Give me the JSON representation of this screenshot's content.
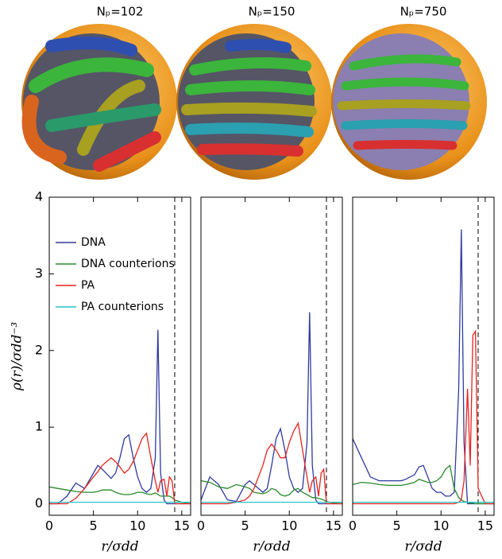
{
  "chart_data": [
    {
      "type": "line",
      "title": "Nₚ=102",
      "xlabel": "r/σdd",
      "ylabel": "ρ(r)/σdd⁻³",
      "x": [
        0,
        1,
        2,
        3,
        4,
        5,
        5.5,
        6,
        7,
        7.5,
        8,
        8.5,
        9,
        9.5,
        10,
        10.5,
        11,
        11.5,
        12,
        12.3,
        12.6,
        13,
        13.3,
        13.6,
        13.9,
        14.2,
        15,
        16
      ],
      "xlim": [
        0,
        16
      ],
      "xticks": [
        0,
        5,
        10,
        15
      ],
      "ylim": [
        -0.15,
        4
      ],
      "yticks": [
        0,
        1,
        2,
        3,
        4
      ],
      "vline": 14.2,
      "legend": "upper left",
      "series": [
        {
          "name": "DNA",
          "color": "#2e3a9e",
          "values": [
            0,
            0,
            0.1,
            0.27,
            0.2,
            0.4,
            0.5,
            0.45,
            0.33,
            0.4,
            0.6,
            0.85,
            0.9,
            0.6,
            0.35,
            0.2,
            0.15,
            0.2,
            0.6,
            2.27,
            0.4,
            0.05,
            0,
            0,
            0,
            0,
            0,
            0
          ]
        },
        {
          "name": "DNA counterions",
          "color": "#2a8a2a",
          "values": [
            0.22,
            0.2,
            0.18,
            0.16,
            0.15,
            0.15,
            0.16,
            0.18,
            0.18,
            0.15,
            0.13,
            0.12,
            0.12,
            0.13,
            0.15,
            0.15,
            0.13,
            0.12,
            0.14,
            0.12,
            0.1,
            0.1,
            0.1,
            0.1,
            0.08,
            0.05,
            0.02,
            0
          ]
        },
        {
          "name": "PA",
          "color": "#e8231e",
          "values": [
            0,
            0,
            0,
            0.07,
            0.2,
            0.35,
            0.42,
            0.5,
            0.6,
            0.55,
            0.48,
            0.4,
            0.45,
            0.55,
            0.7,
            0.85,
            0.92,
            0.6,
            0.3,
            0.15,
            0.3,
            0.32,
            0.1,
            0.35,
            0.3,
            0,
            0,
            0
          ]
        },
        {
          "name": "PA counterions",
          "color": "#2bc4c4",
          "values": [
            0.02,
            0.02,
            0.02,
            0.02,
            0.02,
            0.02,
            0.02,
            0.02,
            0.02,
            0.02,
            0.02,
            0.02,
            0.02,
            0.02,
            0.02,
            0.02,
            0.02,
            0.02,
            0.02,
            0.02,
            0.02,
            0.02,
            0.02,
            0.02,
            0.02,
            0.02,
            0.02,
            0.02
          ]
        }
      ]
    },
    {
      "type": "line",
      "title": "Nₚ=150",
      "xlabel": "r/σdd",
      "x": [
        0,
        1,
        2,
        3,
        4,
        5,
        5.5,
        6,
        7,
        7.5,
        8,
        8.5,
        9,
        9.5,
        10,
        10.5,
        11,
        11.5,
        12,
        12.3,
        12.6,
        13,
        13.3,
        13.6,
        13.9,
        14.2,
        15,
        16
      ],
      "xlim": [
        0,
        16
      ],
      "xticks": [
        0,
        5,
        10,
        15
      ],
      "ylim": [
        -0.15,
        4
      ],
      "vline": 14.2,
      "series": [
        {
          "name": "DNA",
          "color": "#2e3a9e",
          "values": [
            0.05,
            0.35,
            0.25,
            0.05,
            0.03,
            0.25,
            0.3,
            0.25,
            0.15,
            0.2,
            0.5,
            0.85,
            0.98,
            0.7,
            0.35,
            0.2,
            0.15,
            0.2,
            0.8,
            2.5,
            0.5,
            0.05,
            0,
            0,
            0,
            0,
            0,
            0
          ]
        },
        {
          "name": "DNA counterions",
          "color": "#2a8a2a",
          "values": [
            0.3,
            0.28,
            0.22,
            0.2,
            0.25,
            0.22,
            0.2,
            0.15,
            0.13,
            0.15,
            0.2,
            0.18,
            0.12,
            0.1,
            0.12,
            0.18,
            0.2,
            0.15,
            0.12,
            0.1,
            0.08,
            0.08,
            0.07,
            0.06,
            0.05,
            0.03,
            0.01,
            0
          ]
        },
        {
          "name": "PA",
          "color": "#e8231e",
          "values": [
            0,
            0,
            0,
            0,
            0.02,
            0.05,
            0.1,
            0.2,
            0.5,
            0.7,
            0.78,
            0.7,
            0.6,
            0.6,
            0.8,
            0.95,
            1.05,
            0.7,
            0.35,
            0.15,
            0.3,
            0.35,
            0.1,
            0.4,
            0.45,
            0,
            0,
            0
          ]
        },
        {
          "name": "PA counterions",
          "color": "#2bc4c4",
          "values": [
            0.02,
            0.02,
            0.02,
            0.02,
            0.02,
            0.02,
            0.02,
            0.02,
            0.02,
            0.02,
            0.02,
            0.02,
            0.02,
            0.02,
            0.02,
            0.02,
            0.02,
            0.02,
            0.02,
            0.02,
            0.02,
            0.02,
            0.02,
            0.02,
            0.02,
            0.02,
            0.02,
            0.02
          ]
        }
      ]
    },
    {
      "type": "line",
      "title": "Nₚ=750",
      "xlabel": "r/σdd",
      "x": [
        0,
        1,
        2,
        3,
        4,
        5,
        5.5,
        6,
        7,
        7.5,
        8,
        8.5,
        9,
        9.5,
        10,
        10.5,
        11,
        11.5,
        12,
        12.3,
        12.6,
        13,
        13.3,
        13.6,
        13.9,
        14.2,
        15,
        16
      ],
      "xlim": [
        0,
        16
      ],
      "xticks": [
        0,
        5,
        10,
        15
      ],
      "ylim": [
        -0.15,
        4
      ],
      "vline": 14.2,
      "series": [
        {
          "name": "DNA",
          "color": "#2e3a9e",
          "values": [
            0.85,
            0.6,
            0.35,
            0.3,
            0.3,
            0.3,
            0.3,
            0.32,
            0.38,
            0.48,
            0.5,
            0.35,
            0.2,
            0.15,
            0.15,
            0.1,
            0.1,
            0.15,
            1.5,
            3.58,
            0.8,
            0,
            0,
            0,
            0,
            0,
            0,
            0
          ]
        },
        {
          "name": "DNA counterions",
          "color": "#2a8a2a",
          "values": [
            0.25,
            0.28,
            0.27,
            0.25,
            0.24,
            0.24,
            0.24,
            0.25,
            0.28,
            0.32,
            0.3,
            0.28,
            0.28,
            0.3,
            0.35,
            0.45,
            0.5,
            0.2,
            0.08,
            0.05,
            0.03,
            0.02,
            0.01,
            0.01,
            0,
            0,
            0,
            0
          ]
        },
        {
          "name": "PA",
          "color": "#e8231e",
          "values": [
            0,
            0,
            0,
            0,
            0,
            0,
            0,
            0,
            0,
            0,
            0,
            0,
            0,
            0,
            0,
            0,
            0,
            0,
            0.02,
            0.05,
            0.3,
            1.5,
            0.5,
            2.2,
            2.25,
            0.2,
            0,
            0
          ]
        },
        {
          "name": "PA counterions",
          "color": "#2bc4c4",
          "values": [
            0.02,
            0.02,
            0.02,
            0.02,
            0.02,
            0.02,
            0.02,
            0.02,
            0.02,
            0.02,
            0.02,
            0.02,
            0.02,
            0.02,
            0.02,
            0.02,
            0.02,
            0.02,
            0.02,
            0.02,
            0.02,
            0.02,
            0.02,
            0.02,
            0.02,
            0.02,
            0.02,
            0.02
          ]
        }
      ]
    }
  ]
}
